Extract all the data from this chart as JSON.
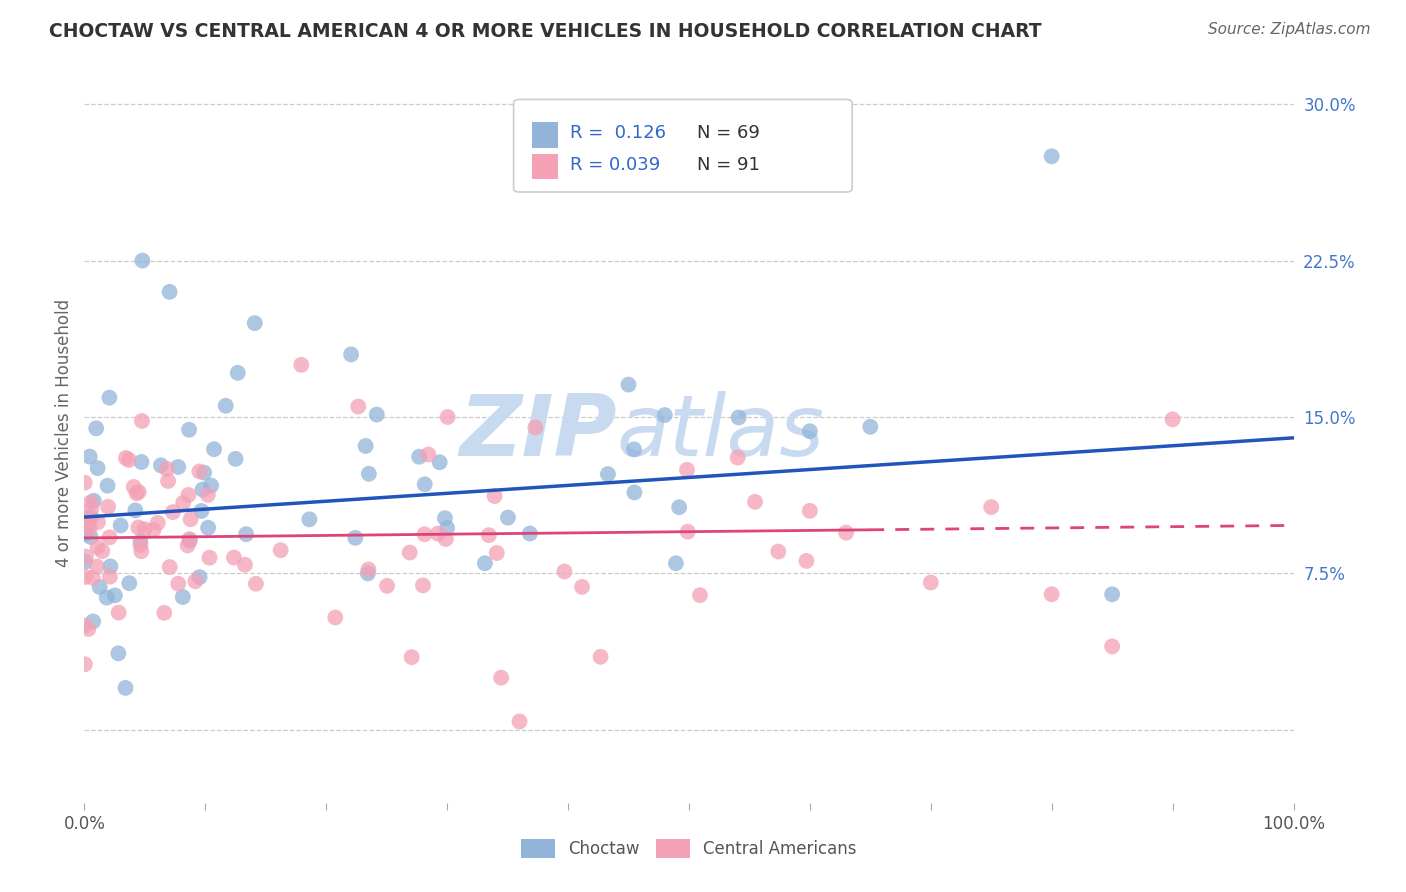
{
  "title": "CHOCTAW VS CENTRAL AMERICAN 4 OR MORE VEHICLES IN HOUSEHOLD CORRELATION CHART",
  "source": "Source: ZipAtlas.com",
  "ylabel": "4 or more Vehicles in Household",
  "xlim": [
    0,
    100
  ],
  "ylim": [
    -3.5,
    32
  ],
  "yticks": [
    0.0,
    7.5,
    15.0,
    22.5,
    30.0
  ],
  "ytick_labels": [
    "",
    "7.5%",
    "15.0%",
    "22.5%",
    "30.0%"
  ],
  "xtick_labels": [
    "0.0%",
    "",
    "",
    "",
    "",
    "",
    "",
    "",
    "",
    "",
    "100.0%"
  ],
  "blue_R": 0.126,
  "blue_N": 69,
  "pink_R": 0.039,
  "pink_N": 91,
  "blue_color": "#92b4d8",
  "pink_color": "#f4a0b5",
  "blue_line_color": "#2255bb",
  "pink_line_color": "#dd4477",
  "blue_line_y0": 10.2,
  "blue_line_y1": 14.0,
  "pink_line_y0": 9.2,
  "pink_line_y1": 9.8,
  "watermark_color": "#c8daf0",
  "background_color": "#ffffff",
  "grid_color": "#cccccc",
  "tick_color": "#4477cc",
  "title_color": "#333333",
  "source_color": "#666666",
  "legend_R_color": "#3366cc",
  "legend_N_color": "#333333"
}
